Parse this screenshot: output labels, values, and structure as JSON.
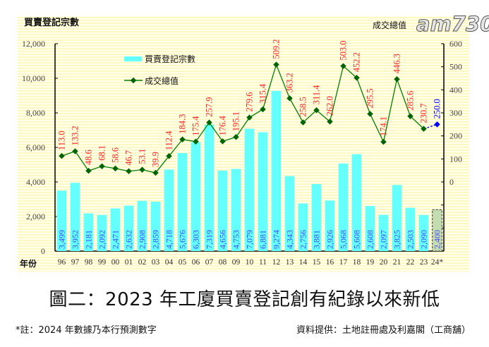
{
  "chart_data": {
    "type": "bar+line",
    "title": "圖二：2023 年工廈買賣登記創有紀錄以來新低",
    "xlabel": "年份",
    "ylabel_left": "買賣登記宗數",
    "ylabel_right": "成交總值",
    "categories": [
      "96",
      "97",
      "98",
      "99",
      "00",
      "01",
      "02",
      "03",
      "04",
      "05",
      "06",
      "07",
      "08",
      "09",
      "10",
      "11",
      "12",
      "13",
      "14",
      "15",
      "16",
      "17",
      "18",
      "19",
      "20",
      "21",
      "22",
      "23",
      "24*"
    ],
    "series": [
      {
        "name": "買賣登記宗數",
        "type": "bar",
        "axis": "left",
        "color": "#66FFFF",
        "values": [
          3499,
          3952,
          2181,
          2092,
          2471,
          2632,
          2908,
          2859,
          4718,
          5676,
          6303,
          7319,
          4656,
          4753,
          7079,
          6881,
          9274,
          4343,
          2756,
          3881,
          2926,
          5068,
          5608,
          2608,
          2097,
          3825,
          2503,
          2090,
          2400
        ],
        "labels": [
          "3,499",
          "3,952",
          "2,181",
          "2,092",
          "2,471",
          "2,632",
          "2,908",
          "2,859",
          "4,718",
          "5,676",
          "6,303",
          "7,319",
          "4,656",
          "4,753",
          "7,079",
          "6,881",
          "9,274",
          "4,343",
          "2,756",
          "3,881",
          "2,926",
          "5,068",
          "5,608",
          "2,608",
          "2,097",
          "3,825",
          "2,503",
          "2,090",
          "2,400"
        ],
        "forecast_color": "#C4DDB0"
      },
      {
        "name": "成交總值",
        "type": "line",
        "axis": "right",
        "color": "#008000",
        "values": [
          113.0,
          133.2,
          48.6,
          68.1,
          58.6,
          46.7,
          53.1,
          39.9,
          112.4,
          184.3,
          175.4,
          257.9,
          176.4,
          195.1,
          279.6,
          315.4,
          509.2,
          363.2,
          258.5,
          311.4,
          262.0,
          503.0,
          452.2,
          295.5,
          174.1,
          446.3,
          285.6,
          230.7,
          250.0
        ],
        "labels": [
          "113.0",
          "133.2",
          "48.6",
          "68.1",
          "58.6",
          "46.7",
          "53.1",
          "39.9",
          "112.4",
          "184.3",
          "175.4",
          "257.9",
          "176.4",
          "195.1",
          "279.6",
          "315.4",
          "509.2",
          "363.2",
          "258.5",
          "311.4",
          "262.0",
          "503.0",
          "452.2",
          "295.5",
          "174.1",
          "446.3",
          "285.6",
          "230.7",
          "250.0"
        ],
        "label_color": "#FF2020",
        "forecast_color": "#0000FF"
      }
    ],
    "y_left": {
      "range": [
        0,
        12000
      ],
      "ticks": [
        "0",
        "2,000",
        "4,000",
        "6,000",
        "8,000",
        "10,000",
        "12,000"
      ]
    },
    "y_right": {
      "range": [
        -300,
        600
      ],
      "ticks": [
        "0",
        "100",
        "200",
        "300",
        "400",
        "500",
        "600"
      ]
    },
    "legend": {
      "position": "top-left",
      "items": [
        "買賣登記宗數",
        "成交總值"
      ]
    },
    "background": "#FFFCD0",
    "grid": false
  },
  "footer": {
    "note": "*註：2024 年數據乃本行預測數字",
    "source": "資料提供：土地註冊處及利嘉閣（工商舖）"
  },
  "watermark": "am730"
}
